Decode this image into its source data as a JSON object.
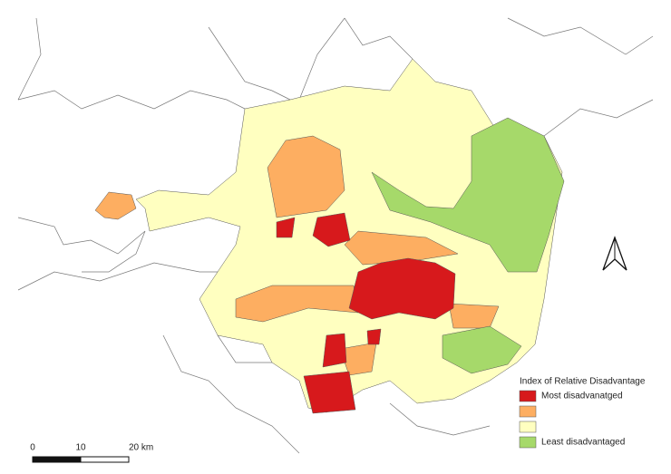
{
  "legend": {
    "title": "Index of Relative Disadvantage",
    "items": [
      {
        "label": "Most disadvanatged",
        "color": "#d7191c"
      },
      {
        "color": "#fdae61"
      },
      {
        "color": "#ffffc0"
      },
      {
        "label": "Least disadvantaged",
        "color": "#a6d96a"
      }
    ]
  },
  "scale_bar": {
    "labels": [
      "0",
      "10",
      "20 km"
    ]
  }
}
